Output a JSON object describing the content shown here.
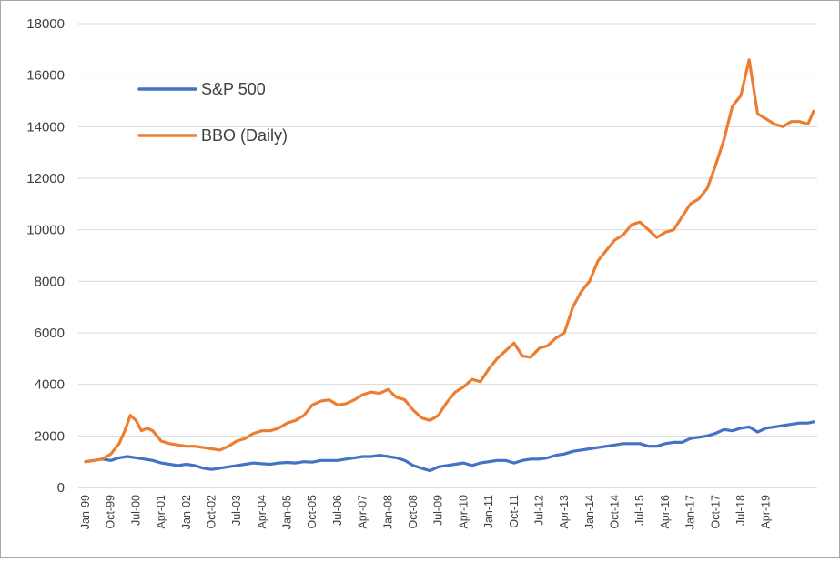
{
  "chart_data": {
    "type": "line",
    "title": "",
    "xlabel": "",
    "ylabel": "",
    "ylim": [
      0,
      18000
    ],
    "yticks": [
      0,
      2000,
      4000,
      6000,
      8000,
      10000,
      12000,
      14000,
      16000,
      18000
    ],
    "xlim": [
      "Jan-99",
      "Sep-20"
    ],
    "xticks": [
      "Jan-99",
      "Oct-99",
      "Jul-00",
      "Apr-01",
      "Jan-02",
      "Oct-02",
      "Jul-03",
      "Apr-04",
      "Jan-05",
      "Oct-05",
      "Jul-06",
      "Apr-07",
      "Jan-08",
      "Oct-08",
      "Jul-09",
      "Apr-10",
      "Jan-11",
      "Oct-11",
      "Jul-12",
      "Apr-13",
      "Jan-14",
      "Oct-14",
      "Jul-15",
      "Apr-16",
      "Jan-17",
      "Oct-17",
      "Jul-18",
      "Apr-19"
    ],
    "grid": "horizontal",
    "legend": "top-left",
    "series": [
      {
        "name": "S&P 500",
        "color": "#4472c4",
        "points": [
          [
            "Jan-99",
            1000
          ],
          [
            "Apr-99",
            1050
          ],
          [
            "Jul-99",
            1100
          ],
          [
            "Oct-99",
            1050
          ],
          [
            "Jan-00",
            1150
          ],
          [
            "Apr-00",
            1200
          ],
          [
            "Jul-00",
            1150
          ],
          [
            "Oct-00",
            1100
          ],
          [
            "Jan-01",
            1050
          ],
          [
            "Apr-01",
            950
          ],
          [
            "Jul-01",
            900
          ],
          [
            "Oct-01",
            850
          ],
          [
            "Jan-02",
            900
          ],
          [
            "Apr-02",
            850
          ],
          [
            "Jul-02",
            750
          ],
          [
            "Oct-02",
            700
          ],
          [
            "Jan-03",
            750
          ],
          [
            "Apr-03",
            800
          ],
          [
            "Jul-03",
            850
          ],
          [
            "Oct-03",
            900
          ],
          [
            "Jan-04",
            950
          ],
          [
            "Apr-04",
            920
          ],
          [
            "Jul-04",
            900
          ],
          [
            "Oct-04",
            950
          ],
          [
            "Jan-05",
            970
          ],
          [
            "Apr-05",
            950
          ],
          [
            "Jul-05",
            1000
          ],
          [
            "Oct-05",
            980
          ],
          [
            "Jan-06",
            1050
          ],
          [
            "Apr-06",
            1050
          ],
          [
            "Jul-06",
            1050
          ],
          [
            "Oct-06",
            1100
          ],
          [
            "Jan-07",
            1150
          ],
          [
            "Apr-07",
            1200
          ],
          [
            "Jul-07",
            1200
          ],
          [
            "Oct-07",
            1250
          ],
          [
            "Jan-08",
            1200
          ],
          [
            "Apr-08",
            1150
          ],
          [
            "Jul-08",
            1050
          ],
          [
            "Oct-08",
            850
          ],
          [
            "Jan-09",
            750
          ],
          [
            "Apr-09",
            650
          ],
          [
            "Jul-09",
            800
          ],
          [
            "Oct-09",
            850
          ],
          [
            "Jan-10",
            900
          ],
          [
            "Apr-10",
            950
          ],
          [
            "Jul-10",
            850
          ],
          [
            "Oct-10",
            950
          ],
          [
            "Jan-11",
            1000
          ],
          [
            "Apr-11",
            1050
          ],
          [
            "Jul-11",
            1050
          ],
          [
            "Oct-11",
            950
          ],
          [
            "Jan-12",
            1050
          ],
          [
            "Apr-12",
            1100
          ],
          [
            "Jul-12",
            1100
          ],
          [
            "Oct-12",
            1150
          ],
          [
            "Jan-13",
            1250
          ],
          [
            "Apr-13",
            1300
          ],
          [
            "Jul-13",
            1400
          ],
          [
            "Oct-13",
            1450
          ],
          [
            "Jan-14",
            1500
          ],
          [
            "Apr-14",
            1550
          ],
          [
            "Jul-14",
            1600
          ],
          [
            "Oct-14",
            1650
          ],
          [
            "Jan-15",
            1700
          ],
          [
            "Apr-15",
            1700
          ],
          [
            "Jul-15",
            1700
          ],
          [
            "Oct-15",
            1600
          ],
          [
            "Jan-16",
            1600
          ],
          [
            "Apr-16",
            1700
          ],
          [
            "Jul-16",
            1750
          ],
          [
            "Oct-16",
            1750
          ],
          [
            "Jan-17",
            1900
          ],
          [
            "Apr-17",
            1950
          ],
          [
            "Jul-17",
            2000
          ],
          [
            "Oct-17",
            2100
          ],
          [
            "Jan-18",
            2250
          ],
          [
            "Apr-18",
            2200
          ],
          [
            "Jul-18",
            2300
          ],
          [
            "Oct-18",
            2350
          ],
          [
            "Jan-19",
            2150
          ],
          [
            "Apr-19",
            2300
          ],
          [
            "Jul-19",
            2350
          ],
          [
            "Oct-19",
            2400
          ],
          [
            "Jan-20",
            2450
          ],
          [
            "Apr-20",
            2500
          ],
          [
            "Jul-20",
            2500
          ],
          [
            "Sep-20",
            2550
          ]
        ]
      },
      {
        "name": "BBO (Daily)",
        "color": "#ed7d31",
        "points": [
          [
            "Jan-99",
            1000
          ],
          [
            "Apr-99",
            1050
          ],
          [
            "Jul-99",
            1100
          ],
          [
            "Oct-99",
            1300
          ],
          [
            "Jan-00",
            1700
          ],
          [
            "Mar-00",
            2200
          ],
          [
            "May-00",
            2800
          ],
          [
            "Jul-00",
            2600
          ],
          [
            "Sep-00",
            2200
          ],
          [
            "Nov-00",
            2300
          ],
          [
            "Jan-01",
            2200
          ],
          [
            "Apr-01",
            1800
          ],
          [
            "Jul-01",
            1700
          ],
          [
            "Oct-01",
            1650
          ],
          [
            "Jan-02",
            1600
          ],
          [
            "Apr-02",
            1600
          ],
          [
            "Jul-02",
            1550
          ],
          [
            "Oct-02",
            1500
          ],
          [
            "Jan-03",
            1450
          ],
          [
            "Apr-03",
            1600
          ],
          [
            "Jul-03",
            1800
          ],
          [
            "Oct-03",
            1900
          ],
          [
            "Jan-04",
            2100
          ],
          [
            "Apr-04",
            2200
          ],
          [
            "Jul-04",
            2200
          ],
          [
            "Oct-04",
            2300
          ],
          [
            "Jan-05",
            2500
          ],
          [
            "Apr-05",
            2600
          ],
          [
            "Jul-05",
            2800
          ],
          [
            "Oct-05",
            3200
          ],
          [
            "Jan-06",
            3350
          ],
          [
            "Apr-06",
            3400
          ],
          [
            "Jul-06",
            3200
          ],
          [
            "Oct-06",
            3250
          ],
          [
            "Jan-07",
            3400
          ],
          [
            "Apr-07",
            3600
          ],
          [
            "Jul-07",
            3700
          ],
          [
            "Oct-07",
            3650
          ],
          [
            "Jan-08",
            3800
          ],
          [
            "Apr-08",
            3500
          ],
          [
            "Jul-08",
            3400
          ],
          [
            "Oct-08",
            3000
          ],
          [
            "Jan-09",
            2700
          ],
          [
            "Apr-09",
            2600
          ],
          [
            "Jul-09",
            2800
          ],
          [
            "Oct-09",
            3300
          ],
          [
            "Jan-10",
            3700
          ],
          [
            "Apr-10",
            3900
          ],
          [
            "Jul-10",
            4200
          ],
          [
            "Oct-10",
            4100
          ],
          [
            "Jan-11",
            4600
          ],
          [
            "Apr-11",
            5000
          ],
          [
            "Jul-11",
            5300
          ],
          [
            "Oct-11",
            5600
          ],
          [
            "Jan-12",
            5100
          ],
          [
            "Apr-12",
            5050
          ],
          [
            "Jul-12",
            5400
          ],
          [
            "Oct-12",
            5500
          ],
          [
            "Jan-13",
            5800
          ],
          [
            "Apr-13",
            6000
          ],
          [
            "Jul-13",
            7000
          ],
          [
            "Oct-13",
            7600
          ],
          [
            "Jan-14",
            8000
          ],
          [
            "Apr-14",
            8800
          ],
          [
            "Jul-14",
            9200
          ],
          [
            "Oct-14",
            9600
          ],
          [
            "Jan-15",
            9800
          ],
          [
            "Apr-15",
            10200
          ],
          [
            "Jul-15",
            10300
          ],
          [
            "Oct-15",
            10000
          ],
          [
            "Jan-16",
            9700
          ],
          [
            "Apr-16",
            9900
          ],
          [
            "Jul-16",
            10000
          ],
          [
            "Oct-16",
            10500
          ],
          [
            "Jan-17",
            11000
          ],
          [
            "Apr-17",
            11200
          ],
          [
            "Jul-17",
            11600
          ],
          [
            "Oct-17",
            12500
          ],
          [
            "Jan-18",
            13500
          ],
          [
            "Apr-18",
            14800
          ],
          [
            "Jul-18",
            15200
          ],
          [
            "Oct-18",
            16600
          ],
          [
            "Jan-19",
            14500
          ],
          [
            "Apr-19",
            14300
          ],
          [
            "Jul-19",
            14100
          ],
          [
            "Oct-19",
            14000
          ],
          [
            "Jan-20",
            14200
          ],
          [
            "Apr-20",
            14200
          ],
          [
            "Jul-20",
            14100
          ],
          [
            "Sep-20",
            14600
          ]
        ]
      }
    ]
  }
}
